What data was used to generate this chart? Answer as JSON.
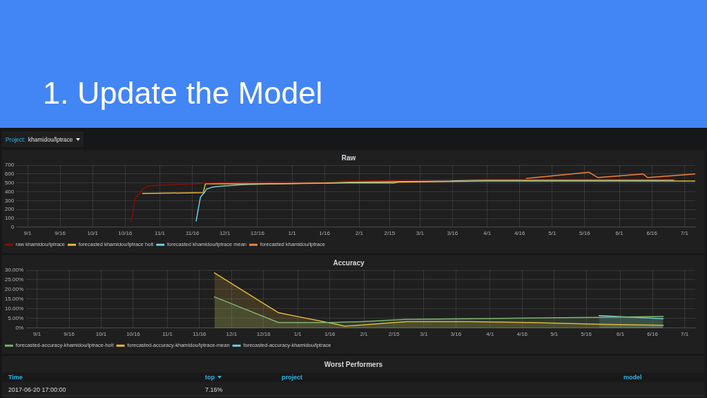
{
  "chart_data": [
    {
      "type": "other",
      "title": "1. Update the Model",
      "annotations": [
        "Project:",
        "khamidou/lptrace"
      ]
    },
    {
      "type": "line",
      "title": "Raw",
      "xlim": [
        "2016-08-27",
        "2017-07-06"
      ],
      "xticks": [
        {
          "value": "2016-09-01",
          "label": "9/1"
        },
        {
          "value": "2016-09-16",
          "label": "9/16"
        },
        {
          "value": "2016-10-01",
          "label": "10/1"
        },
        {
          "value": "2016-10-16",
          "label": "10/16"
        },
        {
          "value": "2016-11-01",
          "label": "11/1"
        },
        {
          "value": "2016-11-16",
          "label": "11/16"
        },
        {
          "value": "2016-12-01",
          "label": "12/1"
        },
        {
          "value": "2016-12-16",
          "label": "12/16"
        },
        {
          "value": "2017-01-01",
          "label": "1/1"
        },
        {
          "value": "2017-01-16",
          "label": "1/16"
        },
        {
          "value": "2017-02-01",
          "label": "2/1"
        },
        {
          "value": "2017-02-15",
          "label": "2/15"
        },
        {
          "value": "2017-03-01",
          "label": "3/1"
        },
        {
          "value": "2017-03-16",
          "label": "3/16"
        },
        {
          "value": "2017-04-01",
          "label": "4/1"
        },
        {
          "value": "2017-04-16",
          "label": "4/16"
        },
        {
          "value": "2017-05-01",
          "label": "5/1"
        },
        {
          "value": "2017-05-16",
          "label": "5/16"
        },
        {
          "value": "2017-06-01",
          "label": "6/1"
        },
        {
          "value": "2017-06-16",
          "label": "6/16"
        },
        {
          "value": "2017-07-01",
          "label": "7/1"
        }
      ],
      "ylim": [
        0,
        700
      ],
      "yticks": [
        0,
        100,
        200,
        300,
        400,
        500,
        600,
        700
      ],
      "grid": true,
      "legend": "bottom left",
      "series": [
        {
          "name": "raw khamidou/lptrace",
          "color": "#890f02",
          "x": [
            "2016-10-18T18:00",
            "2016-10-19T12:00",
            "2016-10-20T12:00",
            "2016-10-22",
            "2016-10-24",
            "2016-10-26",
            "2016-10-29",
            "2016-11-07",
            "2016-11-18",
            "2016-11-22",
            "2016-12-09",
            "2017-01-16",
            "2017-01-26",
            "2017-02-27",
            "2017-03-31",
            "2017-05-01",
            "2017-06-02",
            "2017-06-27"
          ],
          "values": [
            70,
            160,
            330,
            360,
            430,
            460,
            470,
            480,
            490,
            500,
            510,
            510,
            520,
            530,
            540,
            540,
            540,
            540
          ]
        },
        {
          "name": "forecasted khamidou/lptrace holt",
          "color": "#eab839",
          "x": [
            "2016-10-24",
            "2016-11-21",
            "2016-11-22",
            "2016-12-23",
            "2017-01-26",
            "2017-02-17",
            "2017-02-19",
            "2017-04-01",
            "2017-07-06"
          ],
          "values": [
            380,
            390,
            490,
            490,
            500,
            500,
            510,
            520,
            520
          ]
        },
        {
          "name": "forecasted khamidou/lptrace mean",
          "color": "#6ed0e0",
          "x": [
            "2016-11-17T18:00",
            "2016-11-18T18:00",
            "2016-11-19T18:00",
            "2016-11-21T12:00",
            "2016-11-22T12:00",
            "2016-11-25",
            "2016-11-28",
            "2016-12-09",
            "2016-12-23",
            "2017-01-16",
            "2017-02-01",
            "2017-03-15",
            "2017-03-25",
            "2017-06-26"
          ],
          "values": [
            70,
            210,
            340,
            390,
            430,
            450,
            460,
            480,
            490,
            500,
            510,
            520,
            530,
            530
          ]
        },
        {
          "name": "forecasted khamidou/lptrace",
          "color": "#ef843c",
          "x": [
            "2017-04-19",
            "2017-05-18",
            "2017-05-22",
            "2017-06-12",
            "2017-06-14",
            "2017-07-06"
          ],
          "values": [
            550,
            620,
            560,
            600,
            560,
            600
          ]
        }
      ]
    },
    {
      "type": "area",
      "title": "Accuracy",
      "xlim": [
        "2016-08-27",
        "2017-07-06"
      ],
      "xticks": [
        {
          "value": "2016-09-01",
          "label": "9/1"
        },
        {
          "value": "2016-09-16",
          "label": "9/16"
        },
        {
          "value": "2016-10-01",
          "label": "10/1"
        },
        {
          "value": "2016-10-16",
          "label": "10/16"
        },
        {
          "value": "2016-11-01",
          "label": "11/1"
        },
        {
          "value": "2016-11-16",
          "label": "11/16"
        },
        {
          "value": "2016-12-01",
          "label": "12/1"
        },
        {
          "value": "2016-12-16",
          "label": "12/16"
        },
        {
          "value": "2017-01-01",
          "label": "1/1"
        },
        {
          "value": "2017-01-16",
          "label": "1/16"
        },
        {
          "value": "2017-02-01",
          "label": "2/1"
        },
        {
          "value": "2017-02-15",
          "label": "2/15"
        },
        {
          "value": "2017-03-01",
          "label": "3/1"
        },
        {
          "value": "2017-03-16",
          "label": "3/16"
        },
        {
          "value": "2017-04-01",
          "label": "4/1"
        },
        {
          "value": "2017-04-16",
          "label": "4/16"
        },
        {
          "value": "2017-05-01",
          "label": "5/1"
        },
        {
          "value": "2017-05-16",
          "label": "5/16"
        },
        {
          "value": "2017-06-01",
          "label": "6/1"
        },
        {
          "value": "2017-06-16",
          "label": "6/16"
        },
        {
          "value": "2017-07-01",
          "label": "7/1"
        }
      ],
      "ylim": [
        0,
        30
      ],
      "yticks": [
        {
          "value": 0,
          "label": "0%"
        },
        {
          "value": 5,
          "label": "5.00%"
        },
        {
          "value": 10,
          "label": "10.00%"
        },
        {
          "value": 15,
          "label": "15.00%"
        },
        {
          "value": 20,
          "label": "20.00%"
        },
        {
          "value": 25,
          "label": "25.00%"
        },
        {
          "value": 30,
          "label": "30.00%"
        }
      ],
      "grid": true,
      "legend": "bottom left",
      "series": [
        {
          "name": "forecasted-accuracy-khamidou/lptrace-holt",
          "color": "#7eb26d",
          "x": [
            "2016-11-23",
            "2016-12-23",
            "2017-01-17",
            "2017-01-31",
            "2017-02-20",
            "2017-03-30",
            "2017-05-22",
            "2017-06-21"
          ],
          "values": [
            16.2,
            2.9,
            2.9,
            3.4,
            4.5,
            5.0,
            5.6,
            6.0
          ]
        },
        {
          "name": "forecasted-accuracy-khamidou/lptrace-mean",
          "color": "#eab839",
          "x": [
            "2016-11-23",
            "2016-12-23",
            "2017-01-01",
            "2017-01-18",
            "2017-01-23",
            "2017-02-21",
            "2017-03-22",
            "2017-04-20",
            "2017-05-22",
            "2017-06-21"
          ],
          "values": [
            28.6,
            8.0,
            6.0,
            2.3,
            1.0,
            3.4,
            3.4,
            2.9,
            2.0,
            1.5
          ]
        },
        {
          "name": "forecasted-accuracy-khamidou/lptrace",
          "color": "#6ed0e0",
          "x": [
            "2017-05-22",
            "2017-06-21"
          ],
          "values": [
            6.5,
            4.9
          ]
        }
      ]
    },
    {
      "type": "other",
      "title": "Worst Performers",
      "annotations": [
        "Time",
        "top",
        "project",
        "model",
        "2017-06-20 17:00:00",
        "7.16%"
      ]
    }
  ]
}
